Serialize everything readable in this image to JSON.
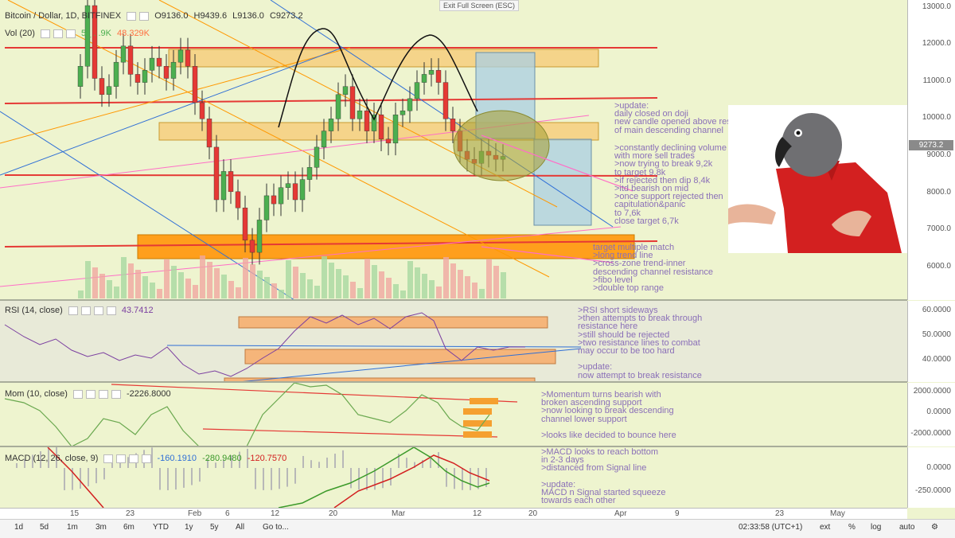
{
  "symbol": {
    "name": "Bitcoin / Dollar, 1D, BITFINEX",
    "open": "O9136.0",
    "high": "H9439.6",
    "low": "L9136.0",
    "close": "C9273.2"
  },
  "volume": {
    "label": "Vol (20)",
    "v1": "5_ . .9K",
    "v2": "48.329K"
  },
  "exit_fullscreen": "Exit Full Screen (ESC)",
  "price_axis": [
    "13000.0",
    "12000.0",
    "11000.0",
    "10000.0",
    "9000.0",
    "8000.0",
    "7000.0",
    "6000.0"
  ],
  "last_price": "9273.2",
  "rsi": {
    "label": "RSI (14, close)",
    "value": "43.7412",
    "axis": [
      "60.0000",
      "50.0000",
      "40.0000"
    ]
  },
  "mom": {
    "label": "Mom (10, close)",
    "value": "-2226.8000",
    "axis": [
      "2000.0000",
      "0.0000",
      "-2000.0000"
    ]
  },
  "macd": {
    "label": "MACD (12, 26, close, 9)",
    "v1": "-160.1910",
    "v2": "-280.9480",
    "v3": "-120.7570",
    "axis": [
      "0.0000",
      "-250.0000"
    ]
  },
  "x_axis": [
    "15",
    "23",
    "Feb",
    "6",
    "12",
    "20",
    "Mar",
    "12",
    "20",
    "Apr",
    "9",
    "23",
    "May"
  ],
  "toolbar": {
    "intervals": [
      "1d",
      "5d",
      "1m",
      "3m",
      "6m",
      "YTD",
      "1y",
      "5y",
      "All"
    ],
    "goto": "Go to...",
    "time": "02:33:58 (UTC+1)",
    "ext": "ext",
    "pct": "%",
    "log": "log",
    "auto": "auto"
  },
  "annotations": {
    "update1": ">update:\ndaily closed on doji\nnew candle opened above resistance\nof main descending channel",
    "volume_note": ">constantly declining volume\nwith more sell trades\n>now trying to break 9,2k\nto target 9,8k\n>if rejected then dip 8,4k\n>itd bearish on mid\n>once support rejected then\ncapitulation&panic\nto 7,6k\nclose target 6,7k",
    "target": "target multiple match\n>long trend line\n>cross-zone trend-inner\ndescending channel resistance\n>fibo level\n>double top range",
    "rsi_note": ">RSI short sideways\n>then attempts to break through\nresistance here\n>still should be rejected\n>two resistance lines to combat\nmay occur to be too hard\n\n>update:\nnow attempt to break resistance",
    "mom_note": ">Momentum turns bearish with\nbroken ascending support\n>now looking to break descending\nchannel lower support\n\n>looks like decided to bounce here",
    "macd_note": ">MACD looks to reach bottom\nin 2-3 days\n>distanced from Signal line\n\n>update:\nMACD n Signal started squeeze\ntowards each other"
  },
  "colors": {
    "bull": "#4caf50",
    "bear": "#e53935",
    "zone_light": "#f5d48a",
    "zone_orange": "#ff9800",
    "rsi_purple": "#7b3fa0",
    "mom_green": "#6aa84f"
  }
}
